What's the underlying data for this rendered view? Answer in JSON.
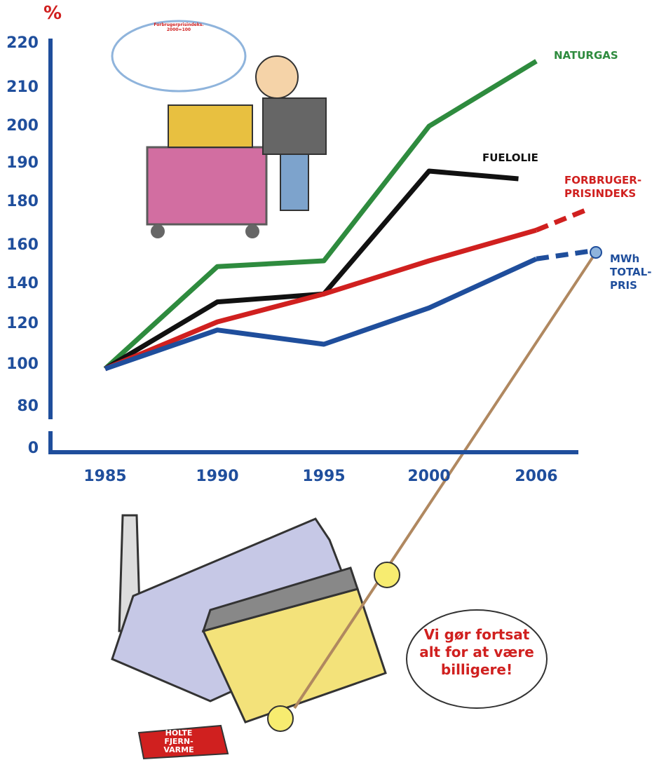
{
  "chart_data": {
    "type": "line",
    "y_unit_label": "%",
    "xticks": [
      1985,
      1990,
      1995,
      2000,
      2006
    ],
    "yticks": [
      0,
      80,
      100,
      120,
      140,
      160,
      180,
      190,
      200,
      210,
      220
    ],
    "ylim": [
      0,
      220
    ],
    "axis_color": "#1f4e9c",
    "series": [
      {
        "name": "NATURGAS",
        "color": "#2e8b3e",
        "x": [
          1985,
          1990,
          1995,
          2000,
          2006
        ],
        "values": [
          98,
          149,
          152,
          200,
          216
        ]
      },
      {
        "name": "FUELOLIE",
        "color": "#111111",
        "x": [
          1985,
          1990,
          1995,
          2000,
          2005
        ],
        "values": [
          98,
          131,
          135,
          188,
          186
        ]
      },
      {
        "name": "FORBRUGER-PRISINDEKS",
        "color": "#d0201f",
        "x": [
          1985,
          1990,
          1995,
          2000,
          2006,
          2009
        ],
        "values": [
          98,
          121,
          135,
          152,
          167,
          177
        ],
        "dashed_last_segment": true
      },
      {
        "name": "MWh TOTAL-PRIS",
        "color": "#1f4e9c",
        "x": [
          1985,
          1990,
          1995,
          2000,
          2006,
          2009
        ],
        "values": [
          98,
          117,
          110,
          128,
          153,
          157
        ],
        "dashed_last_segment": true
      }
    ],
    "annotations": {
      "thought": "Forbrugerprisindeks. 2000=100",
      "speech": "Vi gør fortsat alt for at være billigere!",
      "sign": "HOLTE FJERN-VARME"
    }
  }
}
